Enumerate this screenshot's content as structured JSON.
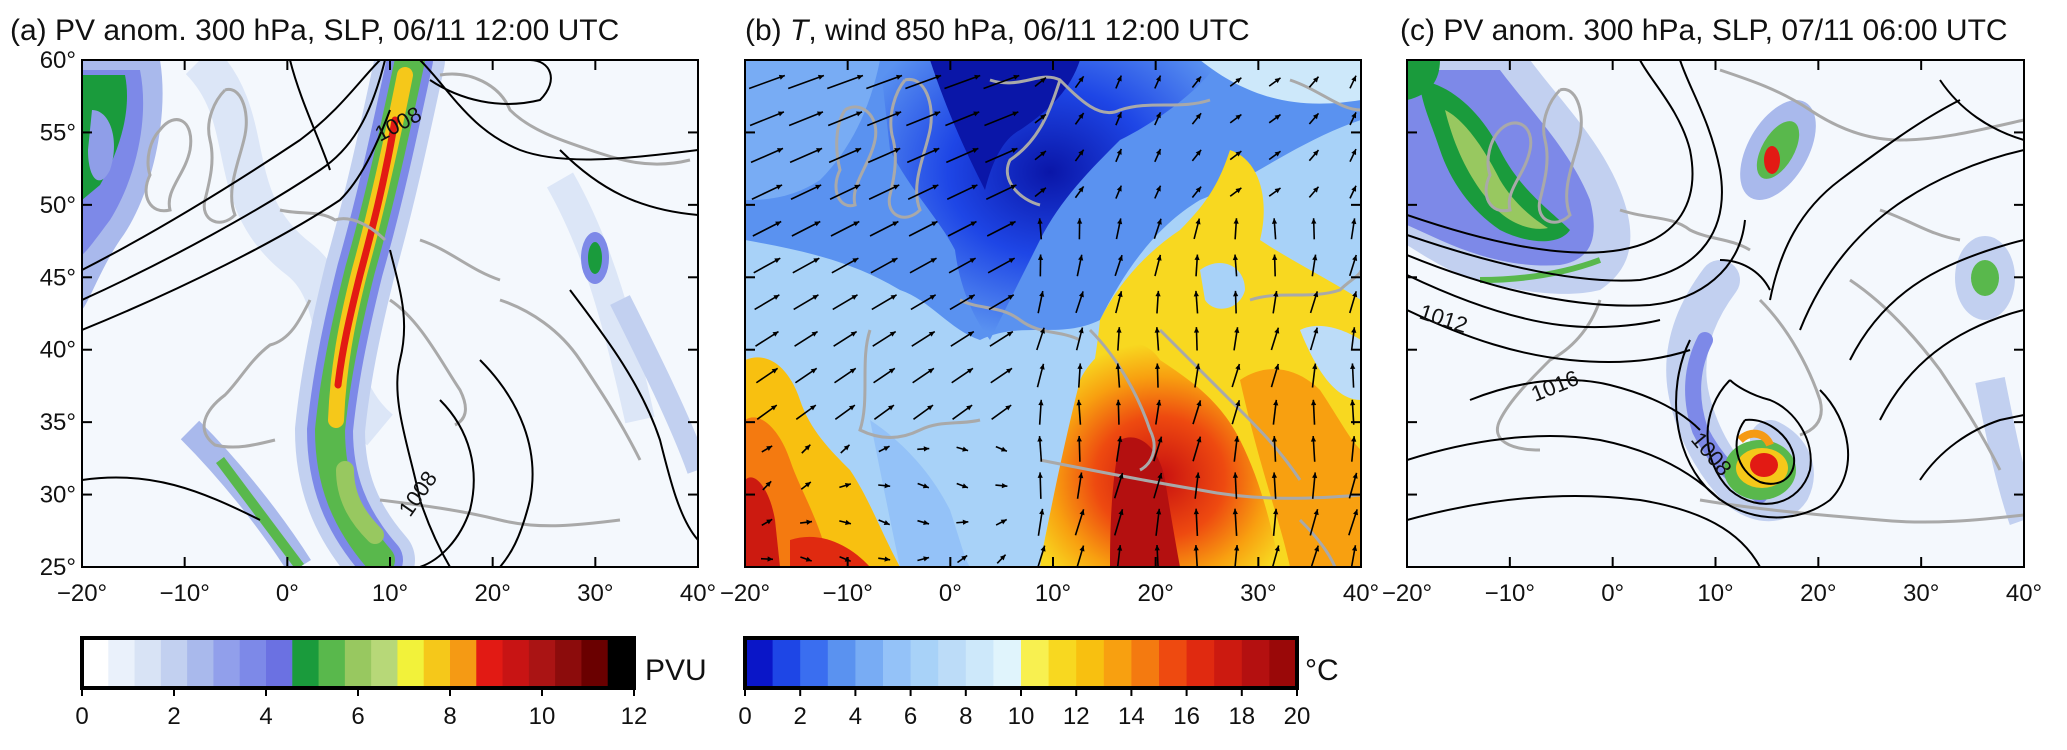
{
  "panels": [
    {
      "id": "a",
      "title_prefix": "(a) ",
      "title_italic": "",
      "title_rest": "PV anom. 300 hPa, SLP, 06/11 12:00 UTC",
      "contour_labels": [
        "1008",
        "1008"
      ]
    },
    {
      "id": "b",
      "title_prefix": "(b) ",
      "title_italic": "T",
      "title_rest": ", wind 850 hPa, 06/11 12:00 UTC",
      "contour_labels": []
    },
    {
      "id": "c",
      "title_prefix": "(c) ",
      "title_italic": "",
      "title_rest": "PV anom. 300 hPa, SLP, 07/11 06:00 UTC",
      "contour_labels": [
        "1012",
        "1016",
        "1008"
      ]
    }
  ],
  "axes": {
    "lat_labels": [
      "60°",
      "55°",
      "50°",
      "45°",
      "40°",
      "35°",
      "30°",
      "25°"
    ],
    "lon_labels": [
      "−20°",
      "−10°",
      "0°",
      "10°",
      "20°",
      "30°",
      "40°"
    ],
    "lat_range": [
      25,
      60
    ],
    "lon_range": [
      -20,
      40
    ]
  },
  "colorbars": [
    {
      "id": "pv",
      "unit": "PVU",
      "tick_labels": [
        "0",
        "2",
        "4",
        "6",
        "8",
        "10",
        "12"
      ],
      "colors": [
        "#ffffff",
        "#eaf1fb",
        "#d8e3f5",
        "#c2d0f0",
        "#a9b9ec",
        "#919feb",
        "#7d89e8",
        "#6b71e2",
        "#1a9b3c",
        "#59b84c",
        "#98c860",
        "#b7d878",
        "#f2f23a",
        "#f5c81a",
        "#f59a14",
        "#e21a14",
        "#c81414",
        "#aa1414",
        "#8c0c0c",
        "#6a0000",
        "#000000"
      ]
    },
    {
      "id": "temp",
      "unit": "°C",
      "tick_labels": [
        "0",
        "2",
        "4",
        "6",
        "8",
        "10",
        "12",
        "14",
        "16",
        "18",
        "20"
      ],
      "colors": [
        "#0a16c8",
        "#1e46e6",
        "#3a6ef0",
        "#5a92f0",
        "#78acf4",
        "#94c2f8",
        "#a8d2f8",
        "#bcdcf8",
        "#cde8fa",
        "#e0f4fc",
        "#f8f050",
        "#f8d820",
        "#f8c010",
        "#f8a010",
        "#f47a10",
        "#ee4a10",
        "#e02a10",
        "#cc1a10",
        "#b41010",
        "#9a0808"
      ]
    }
  ],
  "colors": {
    "coast": "#a9a9a9",
    "contour": "#000000",
    "frame": "#000000"
  }
}
